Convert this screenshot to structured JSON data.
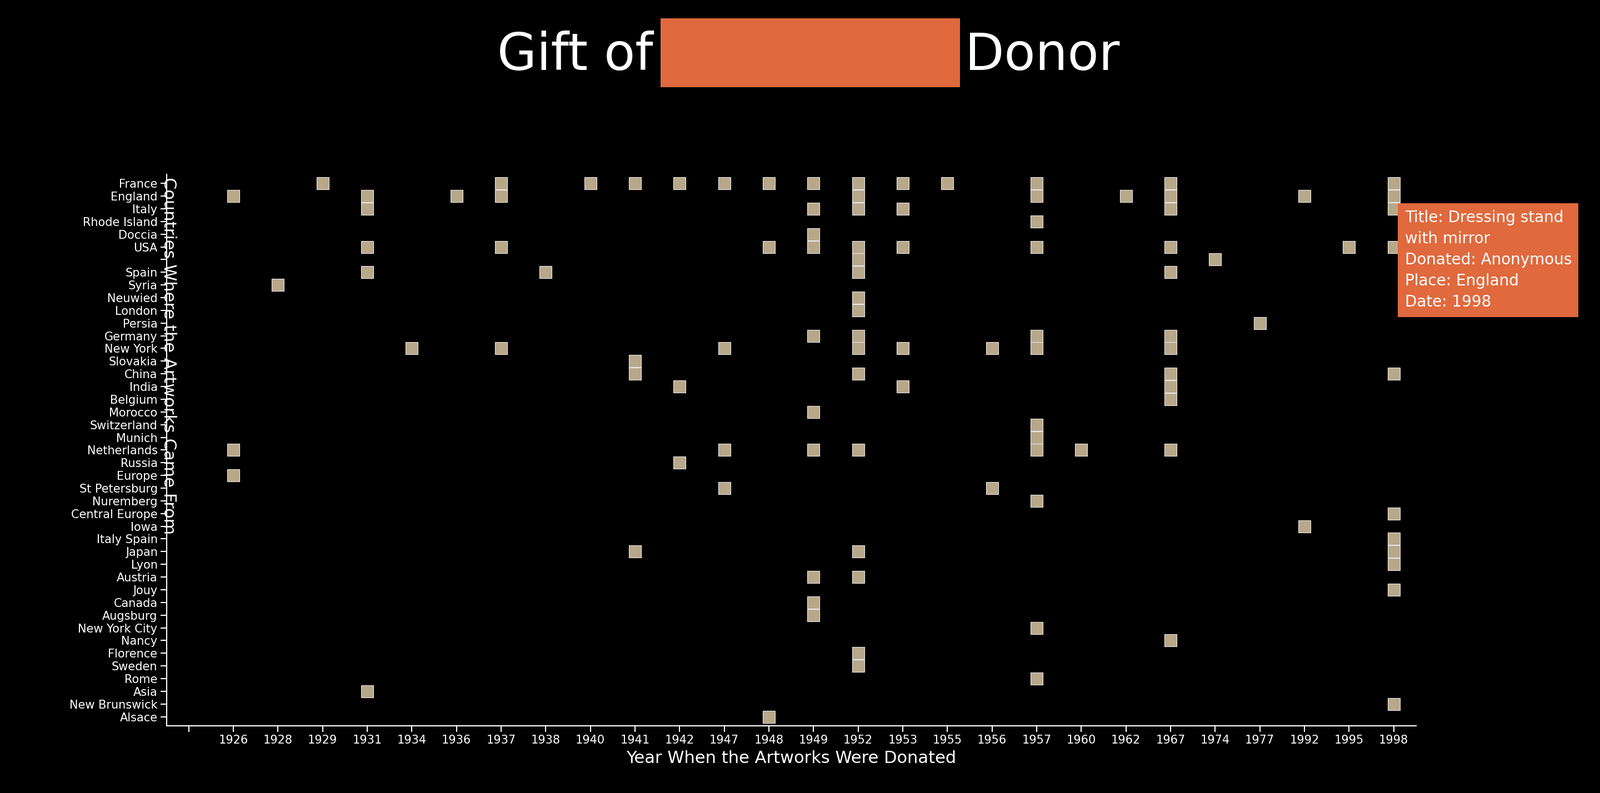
{
  "chart_data": {
    "type": "scatter",
    "title": [
      "Gift of",
      "Donor"
    ],
    "x_label": "Year When the Artworks Were Donated",
    "y_label": "Countries Where the Artworks Came From",
    "x_categories": [
      null,
      "1926",
      "1928",
      "1929",
      "1931",
      "1934",
      "1936",
      "1937",
      "1938",
      "1940",
      "1941",
      "1942",
      "1947",
      "1948",
      "1949",
      "1952",
      "1953",
      "1955",
      "1956",
      "1957",
      "1960",
      "1962",
      "1967",
      "1974",
      "1977",
      "1992",
      "1995",
      "1998"
    ],
    "y_categories": [
      "France",
      "England",
      "Italy",
      "Rhode Island",
      "Doccia",
      "USA",
      null,
      "Spain",
      "Syria",
      "Neuwied",
      "London",
      "Persia",
      "Germany",
      "New York",
      "Slovakia",
      "China",
      "India",
      "Belgium",
      "Morocco",
      "Switzerland",
      "Munich",
      "Netherlands",
      "Russia",
      "Europe",
      "St Petersburg",
      "Nuremberg",
      "Central Europe",
      "Iowa",
      "Italy Spain",
      "Japan",
      "Lyon",
      "Austria",
      "Jouy",
      "Canada",
      "Augsburg",
      "New York City",
      "Nancy",
      "Florence",
      "Sweden",
      "Rome",
      "Asia",
      "New Brunswick",
      "Alsace"
    ],
    "values": [
      [
        "1929",
        "1937",
        "1940",
        "1941",
        "1942",
        "1947",
        "1948",
        "1949",
        "1952",
        "1953",
        "1955",
        "1957",
        "1967",
        "1998"
      ],
      [
        "1926",
        "1931",
        "1936",
        "1937",
        "1952",
        "1957",
        "1962",
        "1967",
        "1992",
        "1998"
      ],
      [
        "1931",
        "1949",
        "1952",
        "1953",
        "1967",
        "1998"
      ],
      [
        "1957"
      ],
      [
        "1949"
      ],
      [
        "1931",
        "1937",
        "1948",
        "1949",
        "1952",
        "1953",
        "1957",
        "1967",
        "1995",
        "1998"
      ],
      [
        "1952",
        "1974"
      ],
      [
        "1931",
        "1938",
        "1952",
        "1967"
      ],
      [
        "1928"
      ],
      [
        "1952"
      ],
      [
        "1952"
      ],
      [
        "1977"
      ],
      [
        "1949",
        "1952",
        "1957",
        "1967"
      ],
      [
        "1934",
        "1937",
        "1947",
        "1952",
        "1953",
        "1956",
        "1957",
        "1967"
      ],
      [
        "1941"
      ],
      [
        "1941",
        "1952",
        "1967",
        "1998"
      ],
      [
        "1942",
        "1953",
        "1967"
      ],
      [
        "1967"
      ],
      [
        "1949"
      ],
      [
        "1957"
      ],
      [
        "1957"
      ],
      [
        "1926",
        "1947",
        "1949",
        "1952",
        "1957",
        "1960",
        "1967"
      ],
      [
        "1942"
      ],
      [
        "1926"
      ],
      [
        "1947",
        "1956"
      ],
      [
        "1957"
      ],
      [
        "1998"
      ],
      [
        "1992"
      ],
      [
        "1998"
      ],
      [
        "1941",
        "1952",
        "1998"
      ],
      [
        "1998"
      ],
      [
        "1949",
        "1952"
      ],
      [
        "1998"
      ],
      [
        "1949"
      ],
      [
        "1949"
      ],
      [
        "1957"
      ],
      [
        "1967"
      ],
      [
        "1952"
      ],
      [
        "1952"
      ],
      [
        "1957"
      ],
      [
        "1931"
      ],
      [
        "1998"
      ],
      [
        "1948"
      ]
    ],
    "color": "#b8a88a",
    "marker": "s",
    "annotation": [
      "Title: Dressing stand with mirror",
      "Donated: Anonymous",
      "Place: England",
      "Date: 1998"
    ]
  }
}
